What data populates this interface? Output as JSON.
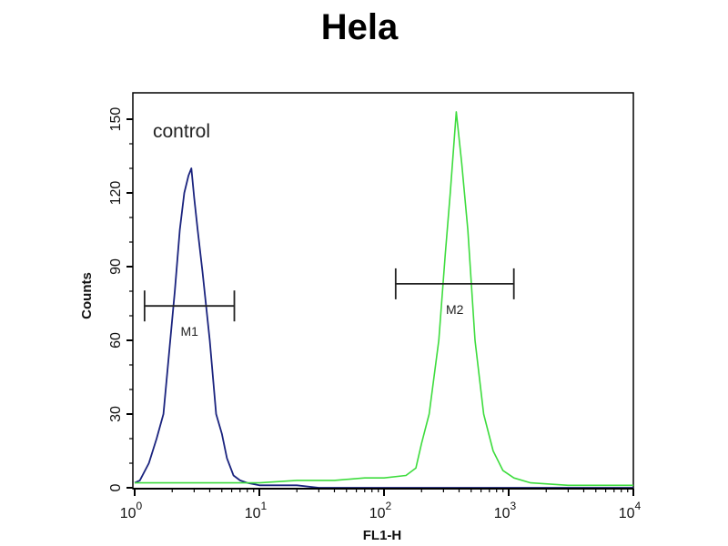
{
  "chart_data": {
    "type": "line",
    "title": "Hela",
    "xlabel": "FL1-H",
    "ylabel": "Counts",
    "xscale": "log",
    "xlim": [
      1,
      10000
    ],
    "ylim": [
      0,
      155
    ],
    "xticks": [
      {
        "base": "10",
        "exp": "0",
        "value": 1
      },
      {
        "base": "10",
        "exp": "1",
        "value": 10
      },
      {
        "base": "10",
        "exp": "2",
        "value": 100
      },
      {
        "base": "10",
        "exp": "3",
        "value": 1000
      },
      {
        "base": "10",
        "exp": "4",
        "value": 10000
      }
    ],
    "yticks": [
      0,
      30,
      60,
      90,
      120,
      150
    ],
    "yticklabels": [
      "0",
      "30",
      "60",
      "90",
      "120",
      "150"
    ],
    "grid": false,
    "annotation": "control",
    "series": [
      {
        "color": "#1a237e",
        "x": [
          1.0,
          1.1,
          1.3,
          1.5,
          1.7,
          1.93,
          2.1,
          2.3,
          2.5,
          2.7,
          2.85,
          3.0,
          3.2,
          3.5,
          4.0,
          4.5,
          5.0,
          5.5,
          6.2,
          7,
          8,
          10,
          15,
          20,
          30,
          50,
          100,
          1000,
          10000
        ],
        "y": [
          2,
          3,
          10,
          20,
          30,
          60,
          80,
          105,
          120,
          127,
          130,
          118,
          105,
          88,
          60,
          30,
          22,
          12,
          5,
          3,
          2,
          1,
          1,
          1,
          0,
          0,
          0,
          0,
          0
        ]
      },
      {
        "color": "#3ddc3d",
        "x": [
          1.0,
          2,
          5,
          10,
          20,
          40,
          70,
          100,
          150,
          180,
          200,
          230,
          275,
          310,
          340,
          380,
          420,
          470,
          537,
          630,
          750,
          900,
          1100,
          1500,
          3000,
          10000
        ],
        "y": [
          2,
          2,
          2,
          2,
          3,
          3,
          4,
          4,
          5,
          8,
          18,
          30,
          60,
          95,
          120,
          153,
          132,
          105,
          60,
          30,
          15,
          7,
          4,
          2,
          1,
          1
        ]
      }
    ],
    "markers": [
      {
        "label": "M1",
        "x_start": 1.2,
        "x_end": 6.3,
        "y": 74
      },
      {
        "label": "M2",
        "x_start": 124,
        "x_end": 1100,
        "y": 83
      }
    ]
  }
}
